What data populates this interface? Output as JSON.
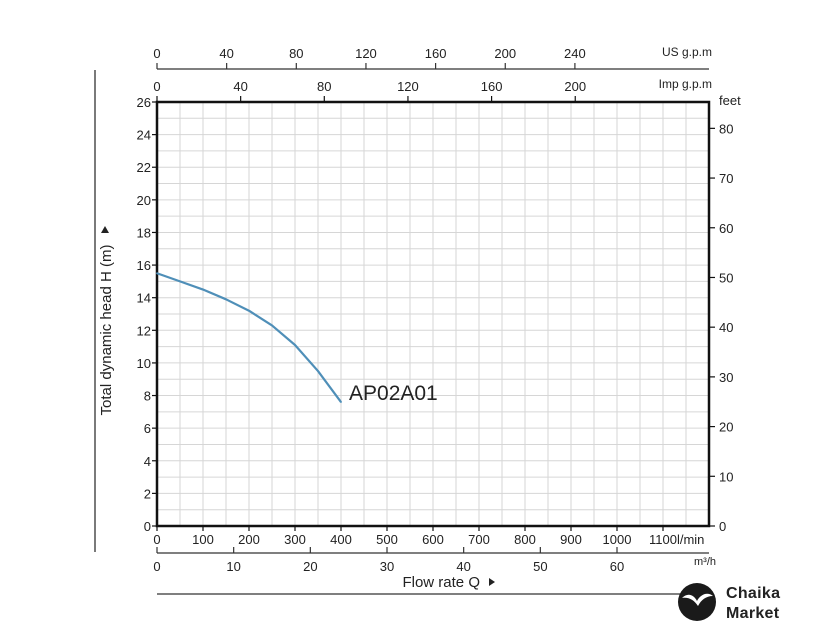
{
  "chart_data": {
    "type": "line",
    "xlabel": "Flow rate Q",
    "ylabel": "Total dynamic head H (m)",
    "x_unit": "l/min",
    "xlim": [
      0,
      1200
    ],
    "ylim": [
      0,
      26
    ],
    "grid": true,
    "bottom_ticks": [
      0,
      100,
      200,
      300,
      400,
      500,
      600,
      700,
      800,
      900,
      1000,
      1100
    ],
    "bottom_tick_labels": [
      "0",
      "100",
      "200",
      "300",
      "400",
      "500",
      "600",
      "700",
      "800",
      "900",
      "1000",
      "1100l/min"
    ],
    "m3h_axis": {
      "unit": "m³/h",
      "ticks": [
        0,
        10,
        20,
        30,
        40,
        50,
        60
      ],
      "tick_labels": [
        "0",
        "10",
        "20",
        "30",
        "40",
        "50",
        "60"
      ]
    },
    "us_gpm_axis": {
      "unit": "US g.p.m",
      "ticks": [
        0,
        40,
        80,
        120,
        160,
        200,
        240
      ],
      "tick_labels": [
        "0",
        "40",
        "80",
        "120",
        "160",
        "200",
        "240"
      ]
    },
    "imp_gpm_axis": {
      "unit": "Imp g.p.m",
      "ticks": [
        0,
        40,
        80,
        120,
        160,
        200
      ],
      "tick_labels": [
        "0",
        "40",
        "80",
        "120",
        "160",
        "200"
      ]
    },
    "left_ticks": [
      0,
      2,
      4,
      6,
      8,
      10,
      12,
      14,
      16,
      18,
      20,
      22,
      24,
      26
    ],
    "feet_axis": {
      "unit": "feet",
      "ticks": [
        0,
        10,
        20,
        30,
        40,
        50,
        60,
        70,
        80
      ],
      "tick_labels": [
        "0",
        "10",
        "20",
        "30",
        "40",
        "50",
        "60",
        "70",
        "80"
      ]
    },
    "series": [
      {
        "name": "AP02A01",
        "color": "#4f8fb8",
        "x": [
          0,
          50,
          100,
          150,
          200,
          250,
          300,
          350,
          400
        ],
        "y": [
          15.5,
          15.0,
          14.5,
          13.9,
          13.2,
          12.3,
          11.1,
          9.5,
          7.6
        ]
      }
    ]
  },
  "brand": {
    "line1": "Chaika",
    "line2": "Market"
  }
}
